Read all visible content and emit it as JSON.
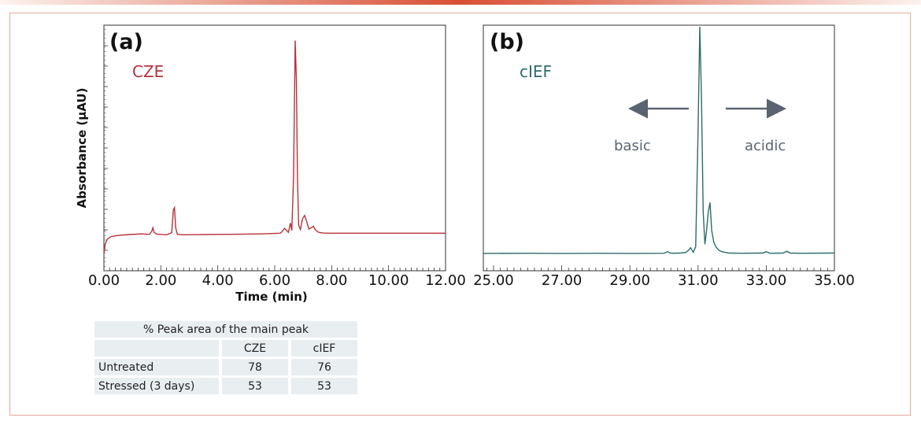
{
  "chart_data": [
    {
      "type": "line",
      "panel_label": "(a)",
      "method_label": "CZE",
      "xlabel": "Time (min)",
      "ylabel": "Absorbance (µAU)",
      "xlim": [
        0,
        12
      ],
      "ylim": [
        0,
        1
      ],
      "x_ticks": [
        "0.00",
        "2.00",
        "4.00",
        "6.00",
        "8.00",
        "10.00",
        "12.00"
      ],
      "line_color": "#b8323a",
      "series": [
        {
          "x": [
            0.0,
            0.05,
            0.12,
            0.25,
            0.5,
            0.9,
            1.3,
            1.6,
            1.68,
            1.72,
            1.76,
            1.85,
            2.2,
            2.38,
            2.44,
            2.48,
            2.52,
            2.58,
            2.75,
            3.5,
            4.5,
            5.5,
            6.2,
            6.35,
            6.42,
            6.48,
            6.55,
            6.6,
            6.66,
            6.72,
            6.76,
            6.8,
            6.84,
            6.9,
            6.98,
            7.05,
            7.12,
            7.2,
            7.28,
            7.36,
            7.42,
            7.5,
            7.58,
            7.7,
            7.9,
            8.5,
            10.0,
            12.0
          ],
          "y": [
            0.0,
            0.045,
            0.065,
            0.078,
            0.083,
            0.087,
            0.09,
            0.088,
            0.102,
            0.118,
            0.098,
            0.089,
            0.086,
            0.095,
            0.2,
            0.211,
            0.12,
            0.088,
            0.086,
            0.087,
            0.088,
            0.09,
            0.093,
            0.115,
            0.105,
            0.097,
            0.14,
            0.105,
            0.35,
            0.98,
            0.8,
            0.35,
            0.13,
            0.11,
            0.16,
            0.175,
            0.148,
            0.112,
            0.118,
            0.125,
            0.11,
            0.1,
            0.096,
            0.094,
            0.093,
            0.093,
            0.093,
            0.093
          ]
        }
      ],
      "grid": false
    },
    {
      "type": "line",
      "panel_label": "(b)",
      "method_label": "cIEF",
      "xlabel": "",
      "ylabel": "",
      "xlim": [
        24.7,
        35
      ],
      "ylim": [
        0,
        1
      ],
      "x_ticks": [
        "25.00",
        "27.00",
        "29.00",
        "31.00",
        "33.00",
        "35.00"
      ],
      "line_color": "#2e6b6b",
      "annotations": [
        {
          "text": "basic",
          "direction": "left"
        },
        {
          "text": "acidic",
          "direction": "right"
        }
      ],
      "series": [
        {
          "x": [
            24.7,
            26.0,
            27.0,
            28.0,
            29.0,
            30.0,
            30.1,
            30.2,
            30.5,
            30.65,
            30.72,
            30.78,
            30.86,
            30.93,
            31.0,
            31.05,
            31.1,
            31.15,
            31.2,
            31.25,
            31.3,
            31.35,
            31.4,
            31.46,
            31.52,
            31.6,
            31.7,
            31.9,
            32.3,
            32.9,
            33.0,
            33.1,
            33.5,
            33.6,
            33.7,
            34.0,
            35.0
          ],
          "y": [
            0.02,
            0.021,
            0.02,
            0.021,
            0.02,
            0.021,
            0.028,
            0.021,
            0.022,
            0.025,
            0.035,
            0.045,
            0.025,
            0.05,
            0.55,
            1.0,
            0.7,
            0.2,
            0.06,
            0.12,
            0.2,
            0.24,
            0.12,
            0.07,
            0.05,
            0.035,
            0.028,
            0.022,
            0.021,
            0.022,
            0.028,
            0.021,
            0.022,
            0.03,
            0.022,
            0.021,
            0.022
          ]
        }
      ],
      "grid": false
    }
  ],
  "table": {
    "caption": "% Peak area of the main peak",
    "headers": [
      "",
      "CZE",
      "cIEF"
    ],
    "rows": [
      {
        "label": "Untreated",
        "cze": "78",
        "cief": "76"
      },
      {
        "label": "Stressed (3 days)",
        "cze": "53",
        "cief": "53"
      }
    ]
  }
}
